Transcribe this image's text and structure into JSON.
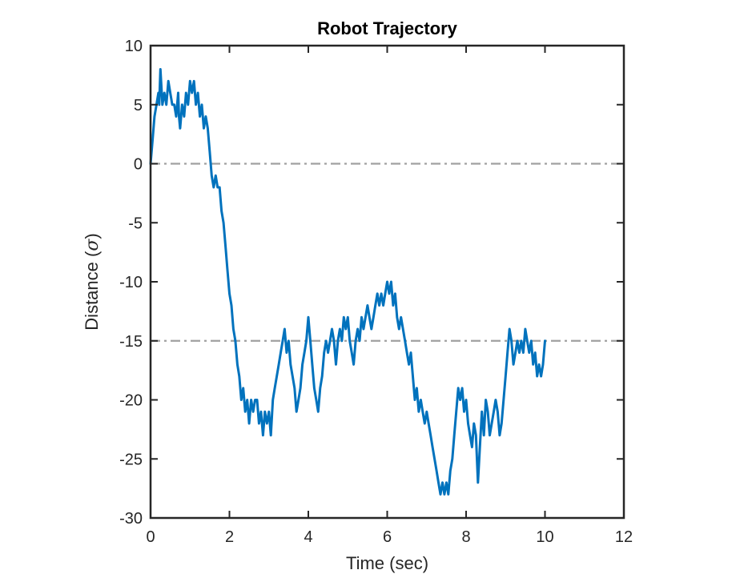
{
  "chart_data": {
    "type": "line",
    "title": "Robot Trajectory",
    "xlabel": "Time (sec)",
    "ylabel_prefix": "Distance (",
    "ylabel_symbol": "σ",
    "ylabel_suffix": ")",
    "xlim": [
      0,
      12
    ],
    "ylim": [
      -30,
      10
    ],
    "xticks": [
      0,
      2,
      4,
      6,
      8,
      10,
      12
    ],
    "yticks": [
      -30,
      -25,
      -20,
      -15,
      -10,
      -5,
      0,
      5,
      10
    ],
    "grid": false,
    "reference_lines": [
      {
        "y": 0,
        "style": "dash-dot",
        "color": "#a0a0a0"
      },
      {
        "y": -15,
        "style": "dash-dot",
        "color": "#a0a0a0"
      }
    ],
    "series": [
      {
        "color": "#0072BD",
        "points": [
          [
            0.0,
            0
          ],
          [
            0.05,
            2
          ],
          [
            0.1,
            4
          ],
          [
            0.15,
            5
          ],
          [
            0.2,
            6
          ],
          [
            0.22,
            5
          ],
          [
            0.25,
            8
          ],
          [
            0.3,
            5
          ],
          [
            0.35,
            6
          ],
          [
            0.4,
            5
          ],
          [
            0.45,
            7
          ],
          [
            0.5,
            6
          ],
          [
            0.55,
            5
          ],
          [
            0.6,
            5
          ],
          [
            0.65,
            4
          ],
          [
            0.7,
            6
          ],
          [
            0.72,
            4
          ],
          [
            0.75,
            3
          ],
          [
            0.8,
            5
          ],
          [
            0.85,
            4
          ],
          [
            0.9,
            6
          ],
          [
            0.95,
            5
          ],
          [
            1.0,
            7
          ],
          [
            1.05,
            6
          ],
          [
            1.1,
            7
          ],
          [
            1.15,
            5
          ],
          [
            1.2,
            6
          ],
          [
            1.25,
            4
          ],
          [
            1.3,
            5
          ],
          [
            1.35,
            3
          ],
          [
            1.4,
            4
          ],
          [
            1.45,
            3
          ],
          [
            1.5,
            1
          ],
          [
            1.55,
            -1
          ],
          [
            1.6,
            -2
          ],
          [
            1.65,
            -1
          ],
          [
            1.7,
            -2
          ],
          [
            1.75,
            -2
          ],
          [
            1.8,
            -4
          ],
          [
            1.85,
            -5
          ],
          [
            1.9,
            -7
          ],
          [
            1.95,
            -9
          ],
          [
            2.0,
            -11
          ],
          [
            2.05,
            -12
          ],
          [
            2.1,
            -14
          ],
          [
            2.15,
            -15
          ],
          [
            2.2,
            -17
          ],
          [
            2.25,
            -18
          ],
          [
            2.3,
            -20
          ],
          [
            2.35,
            -19
          ],
          [
            2.4,
            -21
          ],
          [
            2.45,
            -20
          ],
          [
            2.5,
            -22
          ],
          [
            2.55,
            -20
          ],
          [
            2.6,
            -21
          ],
          [
            2.65,
            -20
          ],
          [
            2.7,
            -20
          ],
          [
            2.75,
            -22
          ],
          [
            2.8,
            -21
          ],
          [
            2.85,
            -23
          ],
          [
            2.9,
            -21
          ],
          [
            2.95,
            -22
          ],
          [
            3.0,
            -21
          ],
          [
            3.05,
            -23
          ],
          [
            3.1,
            -20
          ],
          [
            3.15,
            -19
          ],
          [
            3.2,
            -18
          ],
          [
            3.25,
            -17
          ],
          [
            3.3,
            -16
          ],
          [
            3.35,
            -15
          ],
          [
            3.4,
            -14
          ],
          [
            3.45,
            -16
          ],
          [
            3.5,
            -15
          ],
          [
            3.55,
            -17
          ],
          [
            3.6,
            -18
          ],
          [
            3.65,
            -19
          ],
          [
            3.7,
            -21
          ],
          [
            3.75,
            -20
          ],
          [
            3.8,
            -19
          ],
          [
            3.85,
            -17
          ],
          [
            3.9,
            -16
          ],
          [
            3.95,
            -15
          ],
          [
            4.0,
            -13
          ],
          [
            4.05,
            -15
          ],
          [
            4.1,
            -17
          ],
          [
            4.15,
            -19
          ],
          [
            4.2,
            -20
          ],
          [
            4.25,
            -21
          ],
          [
            4.3,
            -19
          ],
          [
            4.35,
            -18
          ],
          [
            4.4,
            -16
          ],
          [
            4.45,
            -15
          ],
          [
            4.5,
            -16
          ],
          [
            4.55,
            -15
          ],
          [
            4.6,
            -14
          ],
          [
            4.65,
            -15
          ],
          [
            4.7,
            -17
          ],
          [
            4.75,
            -15
          ],
          [
            4.8,
            -14
          ],
          [
            4.85,
            -15
          ],
          [
            4.9,
            -13
          ],
          [
            4.95,
            -14
          ],
          [
            5.0,
            -13
          ],
          [
            5.05,
            -15
          ],
          [
            5.1,
            -16
          ],
          [
            5.15,
            -17
          ],
          [
            5.2,
            -15
          ],
          [
            5.25,
            -14
          ],
          [
            5.3,
            -15
          ],
          [
            5.35,
            -13
          ],
          [
            5.4,
            -14
          ],
          [
            5.45,
            -13
          ],
          [
            5.5,
            -12
          ],
          [
            5.55,
            -13
          ],
          [
            5.6,
            -14
          ],
          [
            5.65,
            -13
          ],
          [
            5.7,
            -12
          ],
          [
            5.75,
            -11
          ],
          [
            5.8,
            -12
          ],
          [
            5.85,
            -11
          ],
          [
            5.9,
            -12
          ],
          [
            5.95,
            -11
          ],
          [
            6.0,
            -10
          ],
          [
            6.05,
            -11
          ],
          [
            6.1,
            -10
          ],
          [
            6.15,
            -12
          ],
          [
            6.2,
            -11
          ],
          [
            6.25,
            -13
          ],
          [
            6.3,
            -14
          ],
          [
            6.35,
            -13
          ],
          [
            6.4,
            -14
          ],
          [
            6.45,
            -15
          ],
          [
            6.5,
            -16
          ],
          [
            6.55,
            -17
          ],
          [
            6.6,
            -16
          ],
          [
            6.65,
            -18
          ],
          [
            6.7,
            -20
          ],
          [
            6.75,
            -19
          ],
          [
            6.8,
            -21
          ],
          [
            6.85,
            -20
          ],
          [
            6.9,
            -21
          ],
          [
            6.95,
            -22
          ],
          [
            7.0,
            -21
          ],
          [
            7.05,
            -22
          ],
          [
            7.1,
            -23
          ],
          [
            7.15,
            -24
          ],
          [
            7.2,
            -25
          ],
          [
            7.25,
            -26
          ],
          [
            7.3,
            -27
          ],
          [
            7.35,
            -28
          ],
          [
            7.4,
            -27
          ],
          [
            7.45,
            -28
          ],
          [
            7.5,
            -27
          ],
          [
            7.55,
            -28
          ],
          [
            7.6,
            -26
          ],
          [
            7.65,
            -25
          ],
          [
            7.7,
            -23
          ],
          [
            7.75,
            -21
          ],
          [
            7.8,
            -19
          ],
          [
            7.85,
            -20
          ],
          [
            7.9,
            -19
          ],
          [
            7.95,
            -21
          ],
          [
            8.0,
            -20
          ],
          [
            8.05,
            -22
          ],
          [
            8.1,
            -23
          ],
          [
            8.15,
            -24
          ],
          [
            8.2,
            -22
          ],
          [
            8.25,
            -23
          ],
          [
            8.3,
            -27
          ],
          [
            8.35,
            -24
          ],
          [
            8.4,
            -21
          ],
          [
            8.45,
            -23
          ],
          [
            8.5,
            -20
          ],
          [
            8.55,
            -21
          ],
          [
            8.6,
            -23
          ],
          [
            8.65,
            -22
          ],
          [
            8.7,
            -21
          ],
          [
            8.75,
            -20
          ],
          [
            8.8,
            -21
          ],
          [
            8.85,
            -23
          ],
          [
            8.9,
            -22
          ],
          [
            8.95,
            -20
          ],
          [
            9.0,
            -18
          ],
          [
            9.05,
            -16
          ],
          [
            9.1,
            -14
          ],
          [
            9.15,
            -15
          ],
          [
            9.2,
            -17
          ],
          [
            9.25,
            -16
          ],
          [
            9.3,
            -15
          ],
          [
            9.35,
            -16
          ],
          [
            9.4,
            -15
          ],
          [
            9.45,
            -16
          ],
          [
            9.5,
            -14
          ],
          [
            9.55,
            -15
          ],
          [
            9.6,
            -16
          ],
          [
            9.65,
            -15
          ],
          [
            9.7,
            -17
          ],
          [
            9.75,
            -16
          ],
          [
            9.8,
            -18
          ],
          [
            9.85,
            -17
          ],
          [
            9.9,
            -18
          ],
          [
            9.95,
            -17
          ],
          [
            10.0,
            -15
          ]
        ]
      }
    ]
  }
}
